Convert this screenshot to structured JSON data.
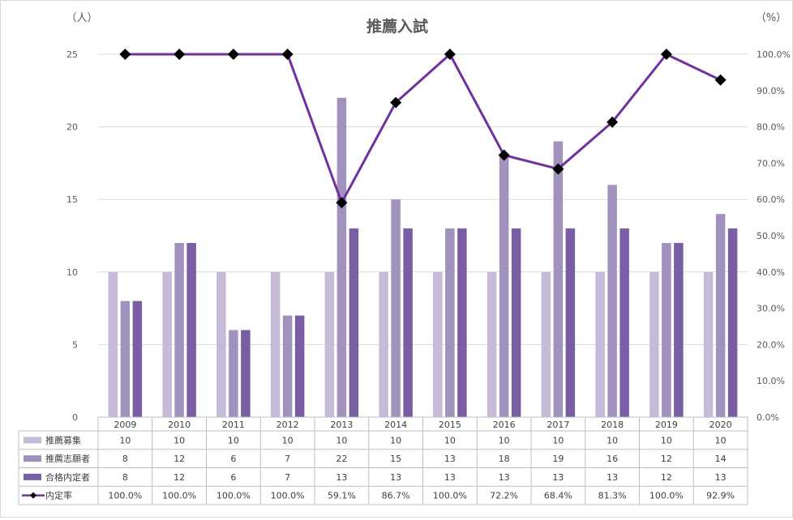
{
  "chart_data": {
    "type": "bar",
    "title": "推薦入試",
    "y_left_unit": "（人）",
    "y_right_unit": "（%）",
    "categories": [
      "2009",
      "2010",
      "2011",
      "2012",
      "2013",
      "2014",
      "2015",
      "2016",
      "2017",
      "2018",
      "2019",
      "2020"
    ],
    "ylim": [
      0,
      25
    ],
    "ylim_right": [
      0,
      100
    ],
    "y_ticks": [
      "0",
      "5",
      "10",
      "15",
      "20",
      "25"
    ],
    "y_right_ticks": [
      "0.0%",
      "10.0%",
      "20.0%",
      "30.0%",
      "40.0%",
      "50.0%",
      "60.0%",
      "70.0%",
      "80.0%",
      "90.0%",
      "100.0%"
    ],
    "series": [
      {
        "name": "推薦募集",
        "kind": "bar",
        "color": "#c5bad8",
        "values": [
          10,
          10,
          10,
          10,
          10,
          10,
          10,
          10,
          10,
          10,
          10,
          10
        ]
      },
      {
        "name": "推薦志願者",
        "kind": "bar",
        "color": "#a191bd",
        "values": [
          8,
          12,
          6,
          7,
          22,
          15,
          13,
          18,
          19,
          16,
          12,
          14
        ]
      },
      {
        "name": "合格内定者",
        "kind": "bar",
        "color": "#7a5ea3",
        "values": [
          8,
          12,
          6,
          7,
          13,
          13,
          13,
          13,
          13,
          13,
          12,
          13
        ]
      },
      {
        "name": "内定率",
        "kind": "line",
        "axis": "right",
        "color": "#7030a0",
        "marker_color": "#000000",
        "values": [
          100.0,
          100.0,
          100.0,
          100.0,
          59.1,
          86.7,
          100.0,
          72.2,
          68.4,
          81.3,
          100.0,
          92.9
        ],
        "labels": [
          "100.0%",
          "100.0%",
          "100.0%",
          "100.0%",
          "59.1%",
          "86.7%",
          "100.0%",
          "72.2%",
          "68.4%",
          "81.3%",
          "100.0%",
          "92.9%"
        ]
      }
    ],
    "grid": true,
    "legend": "data-table"
  }
}
